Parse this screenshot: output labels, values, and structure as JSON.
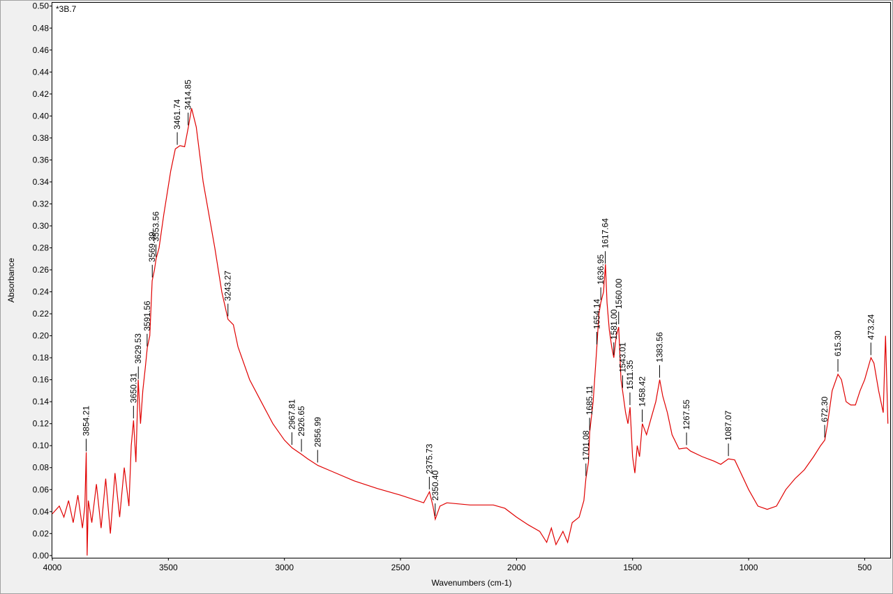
{
  "chart_data": {
    "type": "line",
    "sample": "*3B.7",
    "xlabel": "Wavenumbers (cm-1)",
    "ylabel": "Absorbance",
    "xlim": [
      4000,
      390
    ],
    "ylim": [
      -0.002,
      0.503
    ],
    "xticks": [
      4000,
      3500,
      3000,
      2500,
      2000,
      1500,
      1000,
      500
    ],
    "yticks": [
      {
        "value": 0,
        "label": "0.00"
      },
      0.02,
      0.04,
      0.06,
      0.08,
      {
        "value": 0.1,
        "label": "0.10"
      },
      0.12,
      0.14,
      0.16,
      0.18,
      {
        "value": 0.2,
        "label": "0.20"
      },
      0.22,
      0.24,
      0.26,
      0.28,
      {
        "value": 0.3,
        "label": "0.30"
      },
      0.32,
      0.34,
      0.36,
      0.38,
      {
        "value": 0.4,
        "label": "0.40"
      },
      0.42,
      0.44,
      0.46,
      0.48,
      {
        "value": 0.5,
        "label": "0.50"
      }
    ],
    "series": [
      {
        "name": "*3B.7",
        "color": "#e00000",
        "x": [
          4000,
          3970,
          3950,
          3930,
          3910,
          3890,
          3870,
          3860,
          3854,
          3850,
          3845,
          3830,
          3810,
          3790,
          3770,
          3750,
          3730,
          3710,
          3690,
          3670,
          3660,
          3650,
          3640,
          3630,
          3620,
          3610,
          3600,
          3591,
          3580,
          3570,
          3560,
          3553,
          3540,
          3520,
          3490,
          3470,
          3450,
          3430,
          3414,
          3400,
          3380,
          3350,
          3300,
          3270,
          3243,
          3220,
          3200,
          3150,
          3100,
          3050,
          3000,
          2967,
          2926,
          2900,
          2856,
          2800,
          2700,
          2600,
          2500,
          2400,
          2375,
          2360,
          2350,
          2330,
          2300,
          2200,
          2100,
          2050,
          2000,
          1950,
          1900,
          1870,
          1850,
          1830,
          1800,
          1780,
          1760,
          1730,
          1710,
          1701,
          1690,
          1685,
          1670,
          1654,
          1645,
          1637,
          1625,
          1617,
          1610,
          1600,
          1590,
          1581,
          1570,
          1560,
          1550,
          1543,
          1530,
          1520,
          1511,
          1500,
          1490,
          1480,
          1470,
          1458,
          1440,
          1420,
          1400,
          1383,
          1370,
          1350,
          1330,
          1300,
          1267,
          1250,
          1200,
          1150,
          1120,
          1087,
          1060,
          1040,
          1000,
          960,
          920,
          880,
          840,
          800,
          760,
          720,
          690,
          672,
          660,
          640,
          615,
          600,
          580,
          560,
          540,
          520,
          500,
          480,
          473,
          460,
          440,
          420,
          410,
          400
        ],
        "values": [
          0.038,
          0.045,
          0.035,
          0.05,
          0.03,
          0.055,
          0.025,
          0.045,
          0.094,
          0.0,
          0.05,
          0.03,
          0.065,
          0.025,
          0.07,
          0.02,
          0.075,
          0.035,
          0.08,
          0.045,
          0.1,
          0.123,
          0.085,
          0.16,
          0.12,
          0.15,
          0.17,
          0.189,
          0.2,
          0.25,
          0.26,
          0.27,
          0.28,
          0.31,
          0.35,
          0.37,
          0.373,
          0.372,
          0.39,
          0.407,
          0.39,
          0.34,
          0.28,
          0.24,
          0.215,
          0.21,
          0.19,
          0.16,
          0.14,
          0.12,
          0.105,
          0.098,
          0.092,
          0.088,
          0.082,
          0.077,
          0.068,
          0.061,
          0.055,
          0.048,
          0.058,
          0.045,
          0.033,
          0.045,
          0.048,
          0.046,
          0.046,
          0.043,
          0.035,
          0.028,
          0.022,
          0.012,
          0.025,
          0.01,
          0.022,
          0.012,
          0.03,
          0.035,
          0.05,
          0.07,
          0.085,
          0.112,
          0.14,
          0.19,
          0.22,
          0.23,
          0.24,
          0.265,
          0.23,
          0.205,
          0.19,
          0.18,
          0.2,
          0.208,
          0.16,
          0.15,
          0.13,
          0.12,
          0.135,
          0.09,
          0.075,
          0.1,
          0.09,
          0.12,
          0.11,
          0.125,
          0.14,
          0.16,
          0.145,
          0.13,
          0.11,
          0.097,
          0.098,
          0.095,
          0.09,
          0.086,
          0.083,
          0.088,
          0.087,
          0.078,
          0.06,
          0.045,
          0.042,
          0.045,
          0.06,
          0.07,
          0.078,
          0.09,
          0.1,
          0.105,
          0.12,
          0.15,
          0.165,
          0.16,
          0.14,
          0.137,
          0.137,
          0.15,
          0.16,
          0.175,
          0.18,
          0.175,
          0.15,
          0.13,
          0.2,
          0.12
        ]
      }
    ],
    "peaks": [
      3854.21,
      3650.31,
      3629.53,
      3591.56,
      3569.39,
      3553.56,
      3461.74,
      3414.85,
      3243.27,
      2967.81,
      2926.65,
      2856.99,
      2375.73,
      {
        "value": 2350.4,
        "label": "2350.40"
      },
      1701.08,
      1685.11,
      1654.14,
      1636.95,
      1617.64,
      {
        "value": 1581,
        "label": "1581.00"
      },
      {
        "value": 1560,
        "label": "1560.00"
      },
      1543.01,
      1511.35,
      1458.42,
      1383.56,
      1267.55,
      1087.07,
      {
        "value": 672.3,
        "label": "672.30"
      },
      {
        "value": 615.3,
        "label": "615.30"
      },
      473.24
    ]
  }
}
